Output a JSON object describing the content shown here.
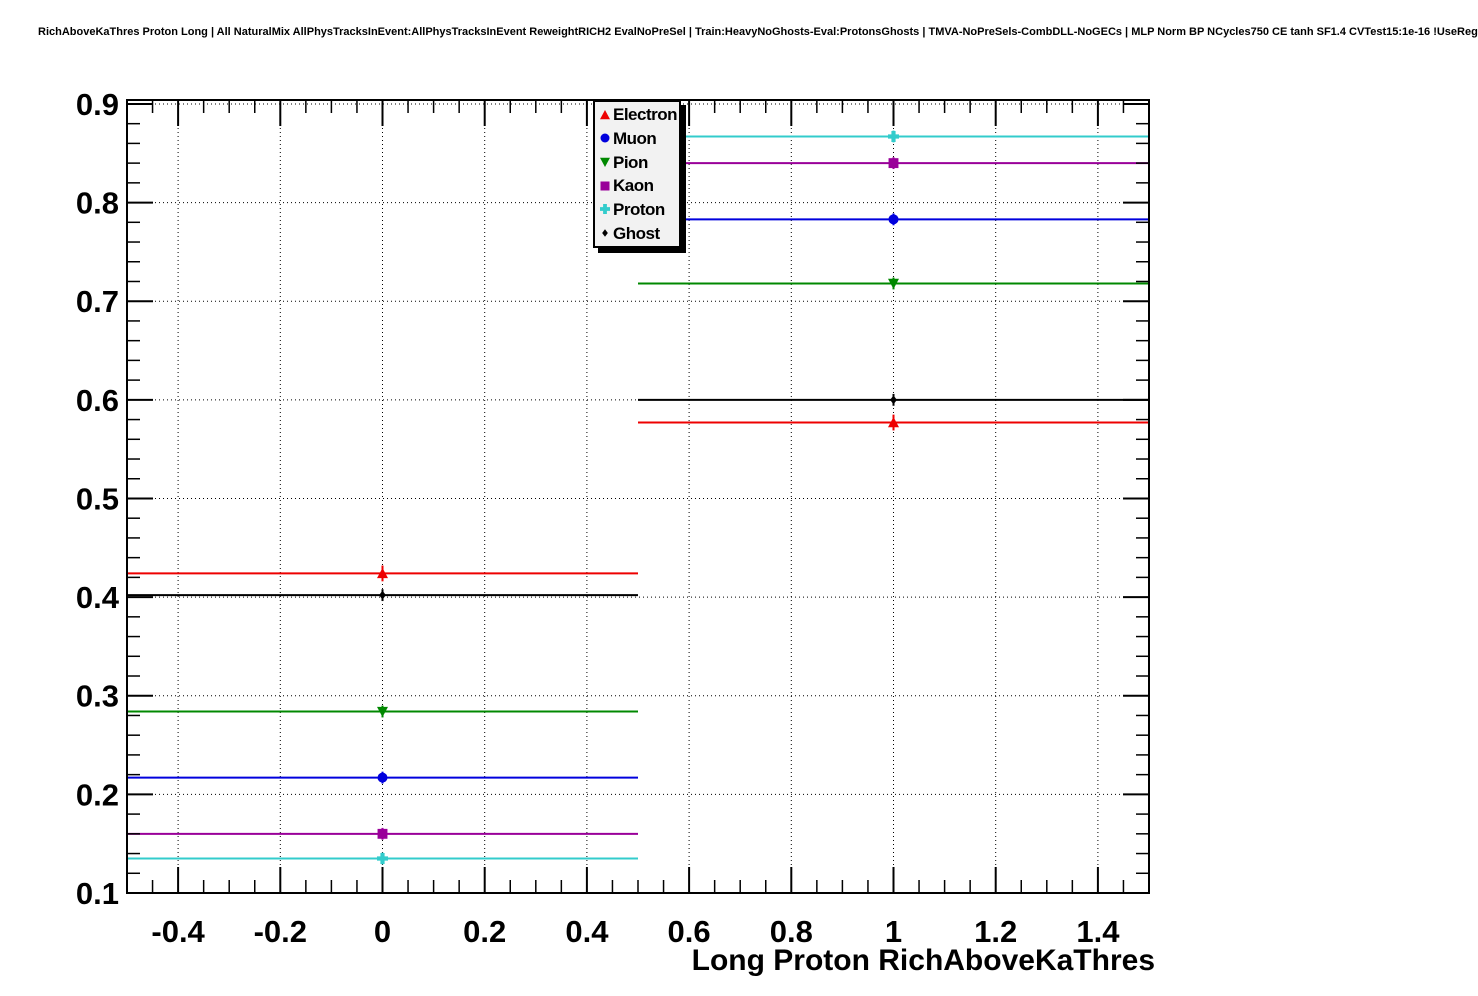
{
  "chart_data": {
    "type": "line",
    "title": "RichAboveKaThres Proton Long | All NaturalMix AllPhysTracksInEvent:AllPhysTracksInEvent ReweightRICH2 EvalNoPreSel | Train:HeavyNoGhosts-Eval:ProtonsGhosts | TMVA-NoPreSels-CombDLL-NoGECs | MLP Norm BP NCycles750 CE tanh SF1.4 CVTest15:1e-16 !UseReg",
    "xlabel": "Long Proton RichAboveKaThres",
    "ylabel": "",
    "xlim": [
      -0.5,
      1.5
    ],
    "ylim": [
      0.1,
      0.904
    ],
    "x_major_ticks": [
      -0.4,
      -0.2,
      0,
      0.2,
      0.4,
      0.6,
      0.8,
      1,
      1.2,
      1.4
    ],
    "x_tick_labels": [
      "-0.4",
      "-0.2",
      "0",
      "0.2",
      "0.4",
      "0.6",
      "0.8",
      "1",
      "1.2",
      "1.4"
    ],
    "y_major_ticks": [
      0.1,
      0.2,
      0.3,
      0.4,
      0.5,
      0.6,
      0.7,
      0.8,
      0.9
    ],
    "y_tick_labels": [
      "0.1",
      "0.2",
      "0.3",
      "0.4",
      "0.5",
      "0.6",
      "0.7",
      "0.8",
      "0.9"
    ],
    "x_minor_step": 0.05,
    "y_minor_step": 0.02,
    "grid": "dotted",
    "grid_color": "#000000",
    "legend_position": "top-center",
    "series": [
      {
        "name": "Electron",
        "color": "#ee0000",
        "marker": "triangle-up",
        "points": [
          {
            "x": 0,
            "y": 0.424,
            "xerr": 0.5,
            "yerr": 0.008
          },
          {
            "x": 1,
            "y": 0.577,
            "xerr": 0.5,
            "yerr": 0.008
          }
        ]
      },
      {
        "name": "Muon",
        "color": "#0000dd",
        "marker": "circle",
        "points": [
          {
            "x": 0,
            "y": 0.217,
            "xerr": 0.5,
            "yerr": 0.006
          },
          {
            "x": 1,
            "y": 0.783,
            "xerr": 0.5,
            "yerr": 0.006
          }
        ]
      },
      {
        "name": "Pion",
        "color": "#008800",
        "marker": "triangle-down",
        "points": [
          {
            "x": 0,
            "y": 0.284,
            "xerr": 0.5,
            "yerr": 0.006
          },
          {
            "x": 1,
            "y": 0.718,
            "xerr": 0.5,
            "yerr": 0.006
          }
        ]
      },
      {
        "name": "Kaon",
        "color": "#990099",
        "marker": "square",
        "points": [
          {
            "x": 0,
            "y": 0.16,
            "xerr": 0.5,
            "yerr": 0.006
          },
          {
            "x": 1,
            "y": 0.84,
            "xerr": 0.5,
            "yerr": 0.006
          }
        ]
      },
      {
        "name": "Proton",
        "color": "#33cccc",
        "marker": "cross",
        "points": [
          {
            "x": 0,
            "y": 0.135,
            "xerr": 0.5,
            "yerr": 0.006
          },
          {
            "x": 1,
            "y": 0.867,
            "xerr": 0.5,
            "yerr": 0.006
          }
        ]
      },
      {
        "name": "Ghost",
        "color": "#000000",
        "marker": "diamond",
        "points": [
          {
            "x": 0,
            "y": 0.402,
            "xerr": 0.5,
            "yerr": 0.006
          },
          {
            "x": 1,
            "y": 0.6,
            "xerr": 0.5,
            "yerr": 0.006
          }
        ]
      }
    ]
  }
}
